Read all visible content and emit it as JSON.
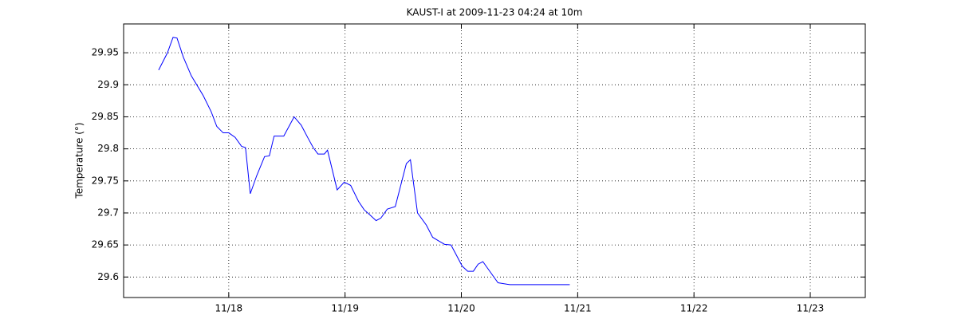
{
  "chart_data": {
    "type": "line",
    "title": "KAUST-I at 2009-11-23 04:24 at 10m",
    "y_label": "Temperature (°)",
    "x": [
      17.397,
      17.473,
      17.521,
      17.555,
      17.61,
      17.678,
      17.781,
      17.849,
      17.897,
      17.952,
      18.0,
      18.055,
      18.11,
      18.144,
      18.185,
      18.24,
      18.308,
      18.349,
      18.39,
      18.473,
      18.562,
      18.623,
      18.678,
      18.726,
      18.767,
      18.822,
      18.849,
      18.932,
      18.993,
      19.048,
      19.116,
      19.164,
      19.219,
      19.267,
      19.308,
      19.363,
      19.432,
      19.527,
      19.562,
      19.623,
      19.699,
      19.753,
      19.808,
      19.856,
      19.911,
      19.952,
      20.007,
      20.055,
      20.103,
      20.144,
      20.185,
      20.24,
      20.315,
      20.418,
      20.932
    ],
    "series": [
      {
        "color": "#0000ff",
        "values": [
          29.923,
          29.95,
          29.974,
          29.973,
          29.943,
          29.914,
          29.883,
          29.858,
          29.835,
          29.825,
          29.825,
          29.818,
          29.804,
          29.802,
          29.73,
          29.758,
          29.788,
          29.789,
          29.82,
          29.82,
          29.85,
          29.837,
          29.818,
          29.802,
          29.792,
          29.792,
          29.798,
          29.736,
          29.748,
          29.743,
          29.718,
          29.705,
          29.696,
          29.688,
          29.692,
          29.706,
          29.71,
          29.777,
          29.783,
          29.7,
          29.681,
          29.662,
          29.656,
          29.651,
          29.65,
          29.636,
          29.617,
          29.609,
          29.609,
          29.62,
          29.624,
          29.61,
          29.591,
          29.588,
          29.588
        ]
      }
    ],
    "xlim": [
      17.096,
      23.473
    ],
    "xticks": [
      {
        "value": 18,
        "label": "11/18"
      },
      {
        "value": 19,
        "label": "11/19"
      },
      {
        "value": 20,
        "label": "11/20"
      },
      {
        "value": 21,
        "label": "11/21"
      },
      {
        "value": 22,
        "label": "11/22"
      },
      {
        "value": 23,
        "label": "11/23"
      }
    ],
    "ylim": [
      29.568,
      29.995
    ],
    "yticks": [
      29.6,
      29.65,
      29.7,
      29.75,
      29.8,
      29.85,
      29.9,
      29.95
    ],
    "grid": true
  }
}
